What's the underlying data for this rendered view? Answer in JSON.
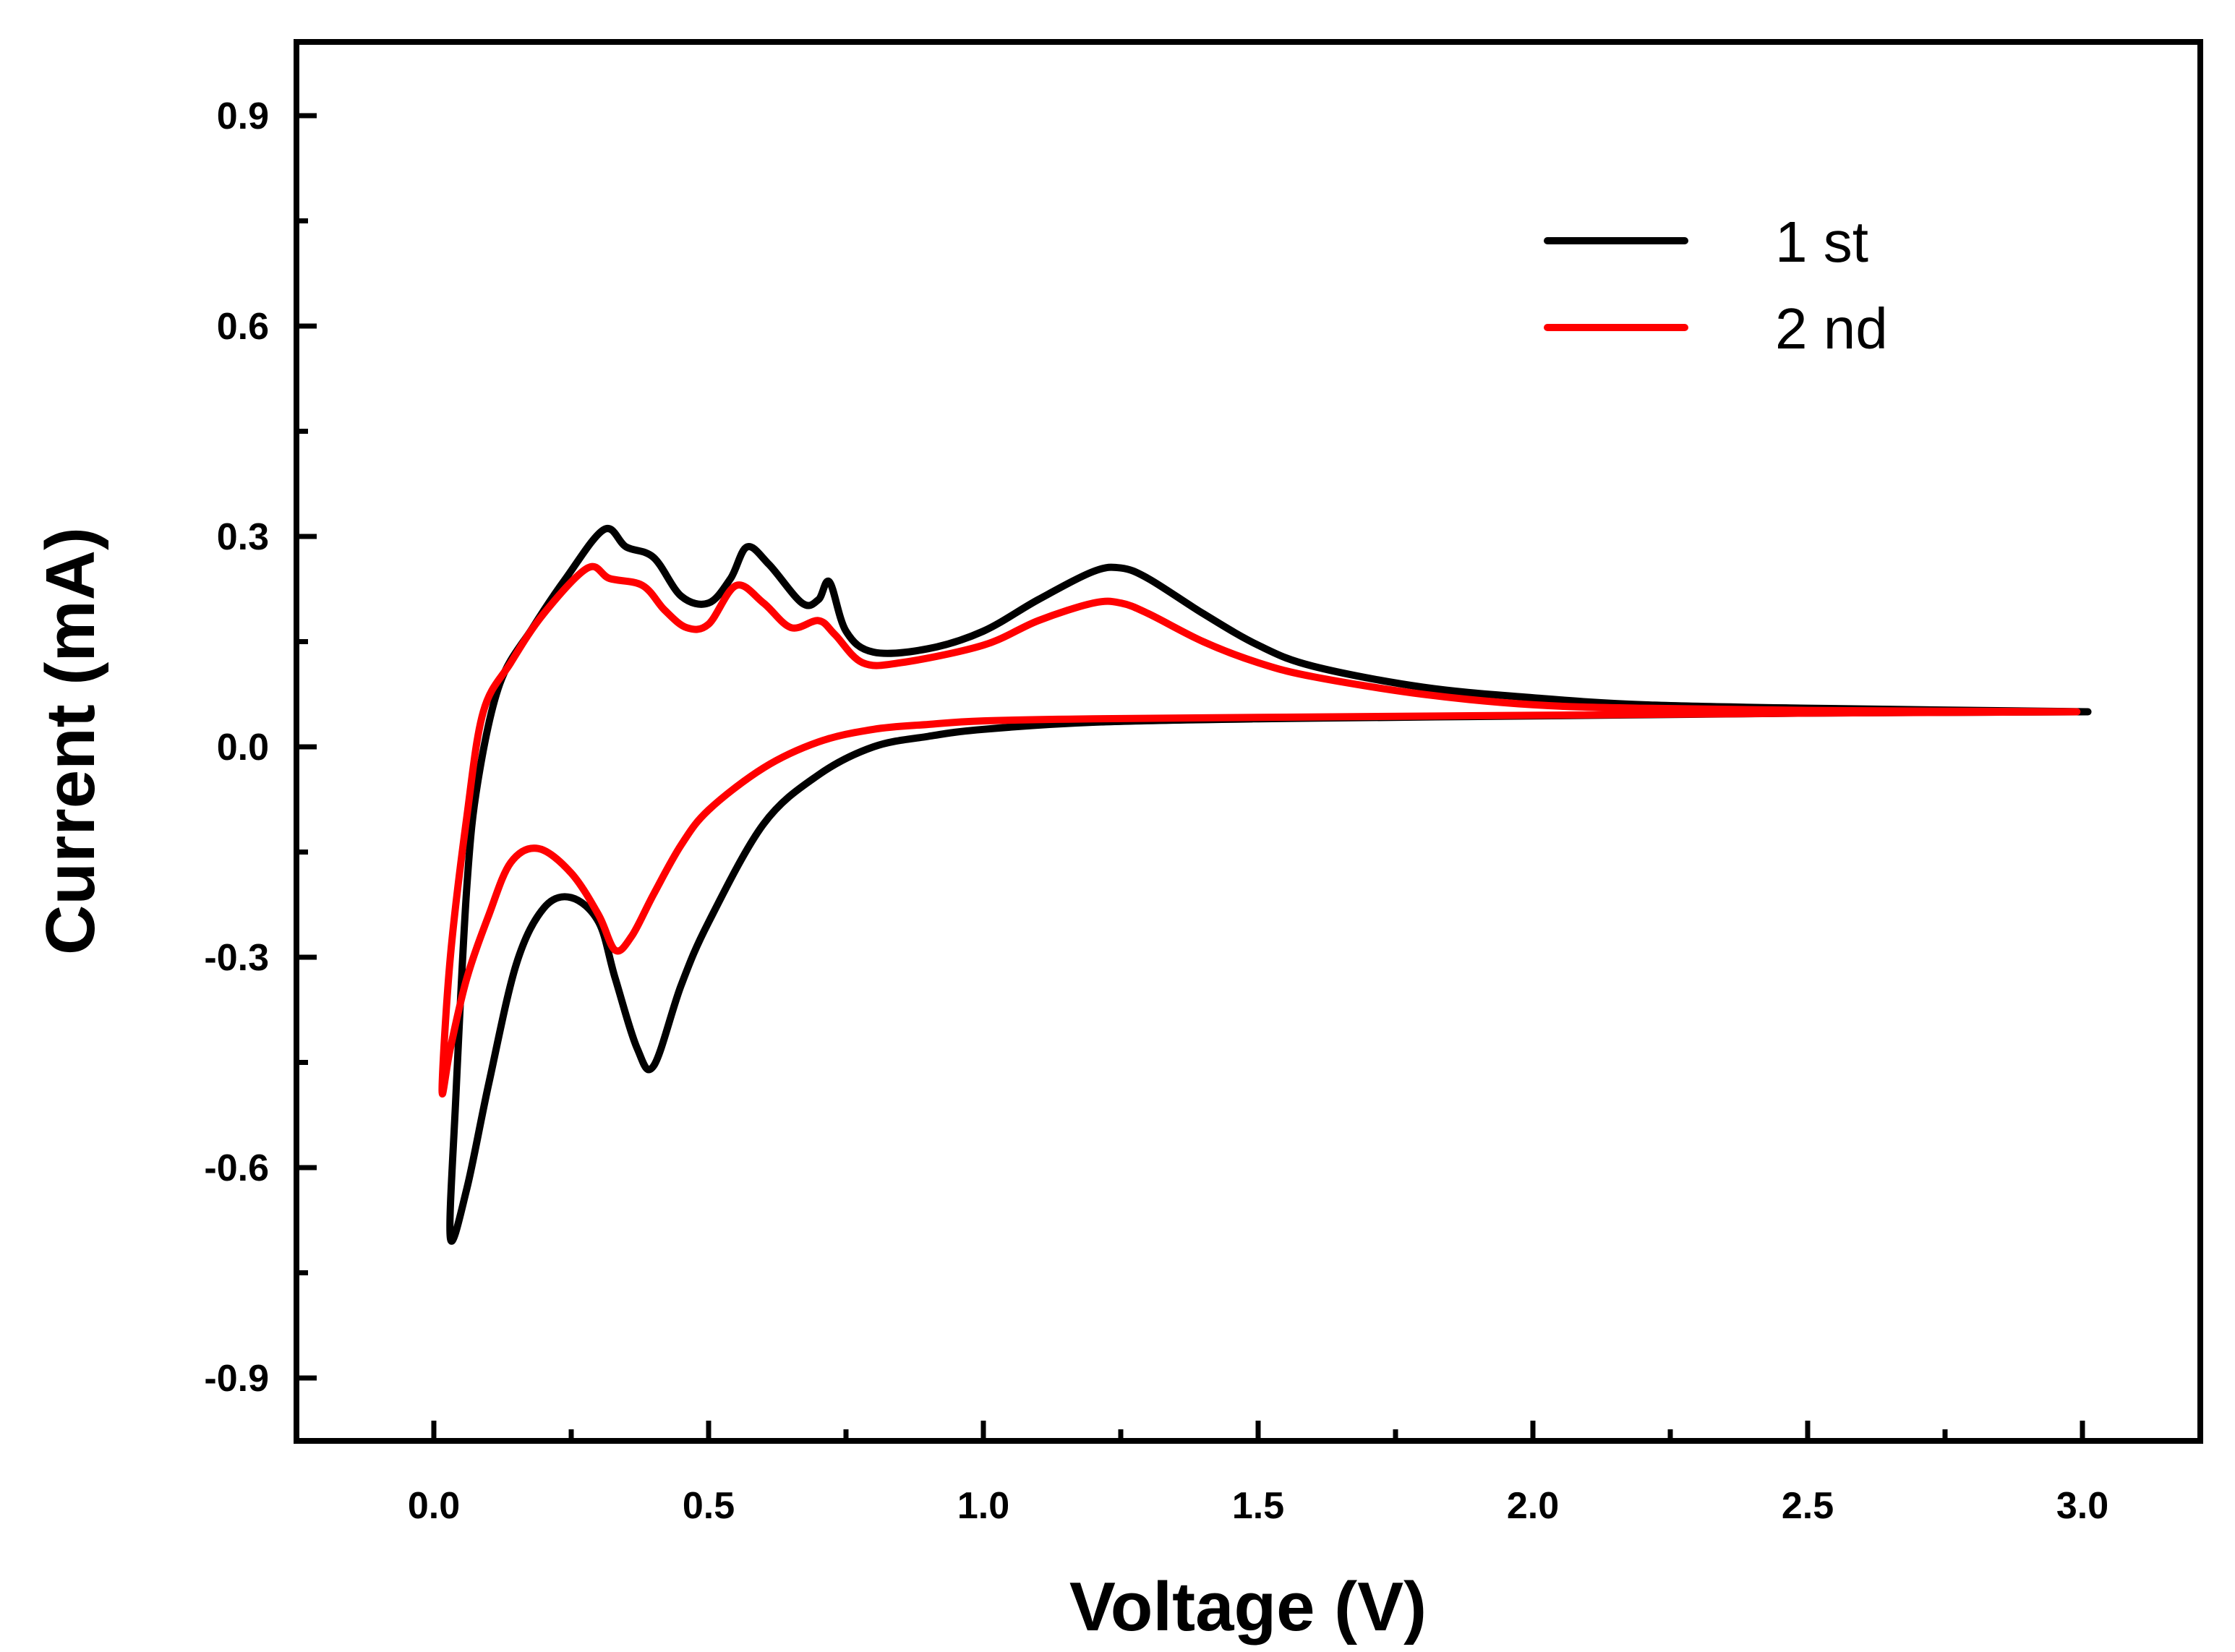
{
  "chart_data": {
    "type": "line",
    "title": "",
    "xlabel": "Voltage (V)",
    "ylabel": "Current (mA)",
    "xlim": [
      -0.25,
      3.25
    ],
    "ylim": [
      -1.0,
      1.0
    ],
    "x_ticks": [
      0.0,
      0.5,
      1.0,
      1.5,
      2.0,
      2.5,
      3.0
    ],
    "x_tick_labels": [
      "0.0",
      "0.5",
      "1.0",
      "1.5",
      "2.0",
      "2.5",
      "3.0"
    ],
    "y_ticks": [
      0.9,
      0.6,
      0.3,
      0.0,
      -0.3,
      -0.6,
      -0.9
    ],
    "y_tick_labels": [
      "0.9",
      "0.6",
      "0.3",
      "0.0",
      "-0.3",
      "-0.6",
      "-0.9"
    ],
    "grid": false,
    "legend_position": "top-right",
    "series": [
      {
        "name": "1 st",
        "color": "#000000",
        "points": [
          [
            3.01,
            0.05
          ],
          [
            2.5,
            0.048
          ],
          [
            2.0,
            0.044
          ],
          [
            1.5,
            0.04
          ],
          [
            1.2,
            0.035
          ],
          [
            1.0,
            0.025
          ],
          [
            0.9,
            0.015
          ],
          [
            0.8,
            0.0
          ],
          [
            0.7,
            -0.04
          ],
          [
            0.6,
            -0.11
          ],
          [
            0.5,
            -0.25
          ],
          [
            0.45,
            -0.34
          ],
          [
            0.4,
            -0.455
          ],
          [
            0.37,
            -0.43
          ],
          [
            0.33,
            -0.33
          ],
          [
            0.3,
            -0.25
          ],
          [
            0.25,
            -0.215
          ],
          [
            0.2,
            -0.23
          ],
          [
            0.15,
            -0.31
          ],
          [
            0.1,
            -0.48
          ],
          [
            0.06,
            -0.63
          ],
          [
            0.03,
            -0.7
          ],
          [
            0.04,
            -0.5
          ],
          [
            0.06,
            -0.2
          ],
          [
            0.08,
            -0.05
          ],
          [
            0.12,
            0.09
          ],
          [
            0.18,
            0.17
          ],
          [
            0.24,
            0.24
          ],
          [
            0.31,
            0.31
          ],
          [
            0.35,
            0.285
          ],
          [
            0.4,
            0.27
          ],
          [
            0.45,
            0.215
          ],
          [
            0.5,
            0.205
          ],
          [
            0.54,
            0.24
          ],
          [
            0.57,
            0.285
          ],
          [
            0.61,
            0.26
          ],
          [
            0.67,
            0.205
          ],
          [
            0.7,
            0.21
          ],
          [
            0.72,
            0.235
          ],
          [
            0.75,
            0.165
          ],
          [
            0.8,
            0.135
          ],
          [
            0.9,
            0.14
          ],
          [
            1.0,
            0.165
          ],
          [
            1.1,
            0.21
          ],
          [
            1.2,
            0.25
          ],
          [
            1.25,
            0.255
          ],
          [
            1.3,
            0.24
          ],
          [
            1.4,
            0.19
          ],
          [
            1.5,
            0.145
          ],
          [
            1.6,
            0.115
          ],
          [
            1.8,
            0.085
          ],
          [
            2.0,
            0.07
          ],
          [
            2.2,
            0.06
          ],
          [
            2.5,
            0.055
          ],
          [
            3.01,
            0.05
          ]
        ]
      },
      {
        "name": "2 nd",
        "color": "#ff0000",
        "points": [
          [
            2.99,
            0.05
          ],
          [
            2.5,
            0.048
          ],
          [
            2.0,
            0.045
          ],
          [
            1.5,
            0.042
          ],
          [
            1.2,
            0.04
          ],
          [
            1.0,
            0.037
          ],
          [
            0.9,
            0.032
          ],
          [
            0.8,
            0.025
          ],
          [
            0.7,
            0.007
          ],
          [
            0.6,
            -0.03
          ],
          [
            0.5,
            -0.09
          ],
          [
            0.45,
            -0.14
          ],
          [
            0.4,
            -0.21
          ],
          [
            0.36,
            -0.27
          ],
          [
            0.33,
            -0.29
          ],
          [
            0.3,
            -0.24
          ],
          [
            0.25,
            -0.18
          ],
          [
            0.19,
            -0.145
          ],
          [
            0.14,
            -0.165
          ],
          [
            0.1,
            -0.24
          ],
          [
            0.06,
            -0.33
          ],
          [
            0.03,
            -0.43
          ],
          [
            0.015,
            -0.49
          ],
          [
            0.03,
            -0.3
          ],
          [
            0.06,
            -0.1
          ],
          [
            0.09,
            0.05
          ],
          [
            0.14,
            0.12
          ],
          [
            0.2,
            0.19
          ],
          [
            0.28,
            0.255
          ],
          [
            0.32,
            0.24
          ],
          [
            0.38,
            0.23
          ],
          [
            0.42,
            0.195
          ],
          [
            0.46,
            0.17
          ],
          [
            0.5,
            0.175
          ],
          [
            0.55,
            0.23
          ],
          [
            0.6,
            0.205
          ],
          [
            0.65,
            0.17
          ],
          [
            0.7,
            0.18
          ],
          [
            0.73,
            0.16
          ],
          [
            0.78,
            0.12
          ],
          [
            0.85,
            0.12
          ],
          [
            1.0,
            0.145
          ],
          [
            1.1,
            0.18
          ],
          [
            1.2,
            0.205
          ],
          [
            1.25,
            0.205
          ],
          [
            1.3,
            0.19
          ],
          [
            1.4,
            0.15
          ],
          [
            1.5,
            0.12
          ],
          [
            1.6,
            0.1
          ],
          [
            1.8,
            0.075
          ],
          [
            2.0,
            0.06
          ],
          [
            2.2,
            0.055
          ],
          [
            2.5,
            0.052
          ],
          [
            2.99,
            0.05
          ]
        ]
      }
    ]
  }
}
